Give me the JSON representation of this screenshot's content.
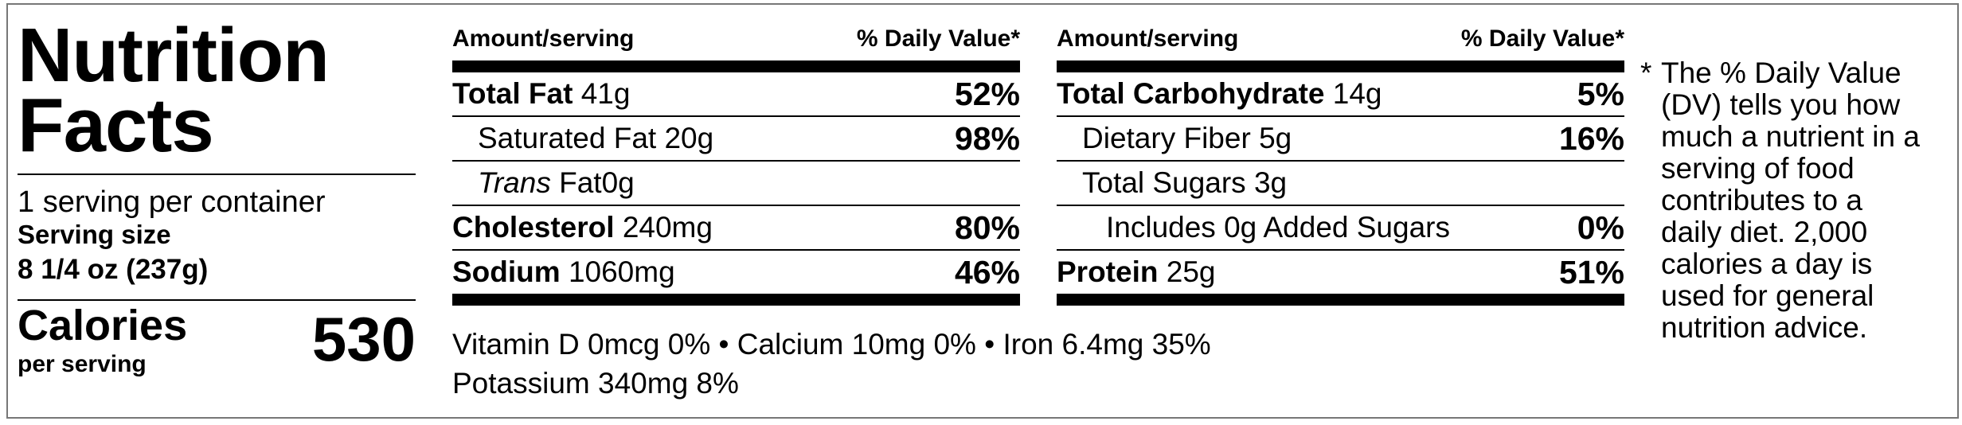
{
  "label": {
    "title_line1": "Nutrition",
    "title_line2": "Facts",
    "servings_per_container": "1 serving per container",
    "serving_size_label": "Serving size",
    "serving_size_value": "8 1/4 oz (237g)",
    "calories_label": "Calories",
    "per_serving_label": "per serving",
    "calories_value": "530"
  },
  "left_table": {
    "header_amount": "Amount/serving",
    "header_dv": "% Daily Value*",
    "rows": [
      {
        "name": "Total Fat",
        "amount": "41g",
        "dv": "52%"
      },
      {
        "name": "Saturated Fat",
        "amount": "20g",
        "dv": "98%"
      },
      {
        "name_prefix": "Trans",
        "name": "Fat",
        "amount": "0g",
        "dv": ""
      },
      {
        "name": "Cholesterol",
        "amount": "240mg",
        "dv": "80%"
      },
      {
        "name": "Sodium",
        "amount": "1060mg",
        "dv": "46%"
      }
    ]
  },
  "right_table": {
    "header_amount": "Amount/serving",
    "header_dv": "% Daily Value*",
    "rows": [
      {
        "name": "Total Carbohydrate",
        "amount": "14g",
        "dv": "5%"
      },
      {
        "name": "Dietary Fiber",
        "amount": "5g",
        "dv": "16%"
      },
      {
        "name": "Total Sugars",
        "amount": "3g",
        "dv": ""
      },
      {
        "name": "Includes 0g Added Sugars",
        "amount": "",
        "dv": "0%"
      },
      {
        "name": "Protein",
        "amount": "25g",
        "dv": "51%"
      }
    ]
  },
  "vitamins": {
    "line1": "Vitamin D 0mcg 0% • Calcium 10mg 0% • Iron 6.4mg 35%",
    "line2": "Potassium 340mg 8%"
  },
  "footnote": {
    "star": "*",
    "text": "The % Daily Value (DV) tells you how much a nutrient in a serving of food contributes to a daily diet. 2,000 calories a day is used for general nutrition advice."
  }
}
